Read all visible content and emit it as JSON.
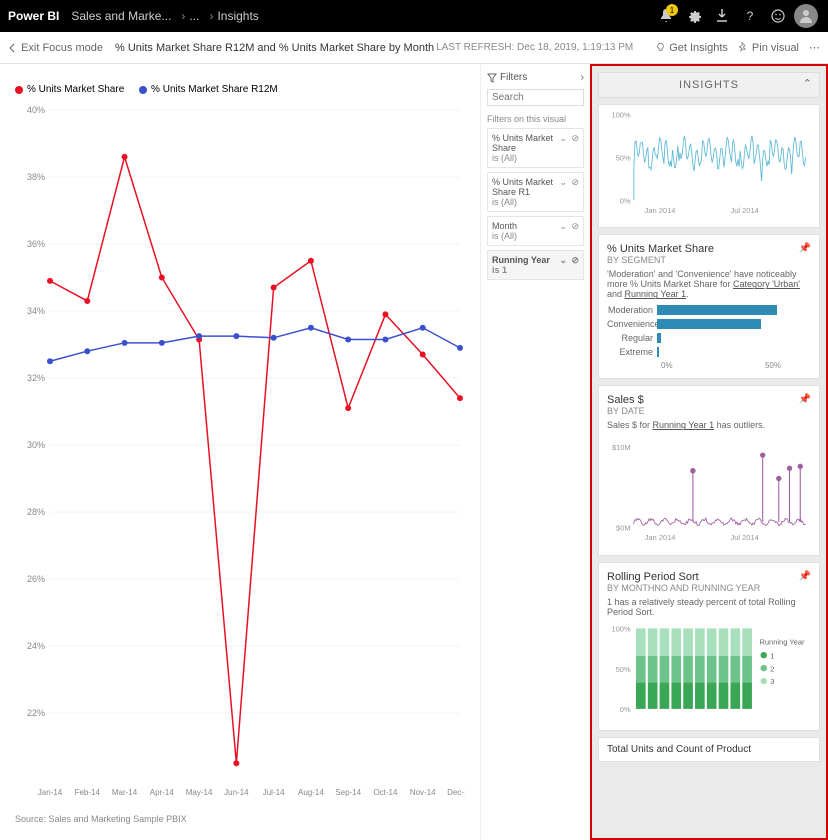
{
  "topbar": {
    "brand": "Power BI",
    "crumb1": "Sales and Marke...",
    "crumb2": "...",
    "crumb3": "Insights",
    "notif_count": "1"
  },
  "subbar": {
    "exit": "Exit Focus mode",
    "title": "% Units Market Share R12M and % Units Market Share by Month",
    "refresh_label": "LAST REFRESH:",
    "refresh_time": "Dec 18, 2019, 1:19:13 PM",
    "get_insights": "Get Insights",
    "pin_visual": "Pin visual"
  },
  "main_chart": {
    "type": "line",
    "legend": [
      {
        "label": "% Units Market Share",
        "color": "#e81123"
      },
      {
        "label": "% Units Market Share R12M",
        "color": "#3b50ce"
      }
    ],
    "x_labels": [
      "Jan-14",
      "Feb-14",
      "Mar-14",
      "Apr-14",
      "May-14",
      "Jun-14",
      "Jul-14",
      "Aug-14",
      "Sep-14",
      "Oct-14",
      "Nov-14",
      "Dec-14"
    ],
    "y_ticks": [
      "40%",
      "38%",
      "36%",
      "34%",
      "32%",
      "30%",
      "28%",
      "26%",
      "24%",
      "22%"
    ],
    "ylim": [
      20,
      40
    ],
    "series_red": [
      34.9,
      34.3,
      38.6,
      35.0,
      33.15,
      20.5,
      34.7,
      35.5,
      31.1,
      33.9,
      32.7,
      31.4
    ],
    "series_blue": [
      32.5,
      32.8,
      33.05,
      33.05,
      33.25,
      33.25,
      33.2,
      33.5,
      33.15,
      33.15,
      33.5,
      32.9
    ],
    "grid_color": "#e8e8e8",
    "source": "Source: Sales and Marketing Sample PBIX"
  },
  "filters": {
    "header": "Filters",
    "search_placeholder": "Search",
    "section": "Filters on this visual",
    "cards": [
      {
        "title": "% Units Market Share",
        "sub": "is (All)",
        "bold": false
      },
      {
        "title": "% Units Market Share R1",
        "sub": "is (All)",
        "bold": false
      },
      {
        "title": "Month",
        "sub": "is (All)",
        "bold": false
      },
      {
        "title": "Running Year",
        "sub": "is 1",
        "bold": true
      }
    ]
  },
  "insights": {
    "header": "INSIGHTS",
    "card0": {
      "color": "#5bb8d6",
      "xlabels": [
        "Jan 2014",
        "Jul 2014"
      ],
      "yticks": [
        "0%",
        "50%",
        "100%"
      ]
    },
    "card1": {
      "title": "% Units Market Share",
      "sub": "BY SEGMENT",
      "desc_pre": "'Moderation' and 'Convenience' have noticeably more % Units Market Share for ",
      "desc_u1": "Category 'Urban'",
      "desc_mid": " and ",
      "desc_u2": "Running Year 1",
      "desc_post": ".",
      "bars": [
        {
          "label": "Moderation",
          "value": 60
        },
        {
          "label": "Convenience",
          "value": 52
        },
        {
          "label": "Regular",
          "value": 2
        },
        {
          "label": "Extreme",
          "value": 1
        }
      ],
      "bar_color": "#2e8bb5",
      "axis": [
        "0%",
        "50%"
      ]
    },
    "card2": {
      "title": "Sales $",
      "sub": "BY DATE",
      "desc_pre": "Sales $ for ",
      "desc_u": "Running Year 1",
      "desc_post": " has outliers.",
      "color": "#a05fa0",
      "yticks": [
        "$0M",
        "$10M"
      ],
      "xlabels": [
        "Jan 2014",
        "Jul 2014"
      ]
    },
    "card3": {
      "title": "Rolling Period Sort",
      "sub": "BY MONTHNO AND RUNNING YEAR",
      "desc": "1 has a relatively steady percent of total Rolling Period Sort.",
      "yticks": [
        "0%",
        "50%",
        "100%"
      ],
      "legend_title": "Running Year",
      "legend": [
        "1",
        "2",
        "3"
      ],
      "colors": [
        "#3aa757",
        "#6cc48a",
        "#a8e0bc"
      ]
    },
    "card4": {
      "title": "Total Units and Count of Product"
    }
  }
}
